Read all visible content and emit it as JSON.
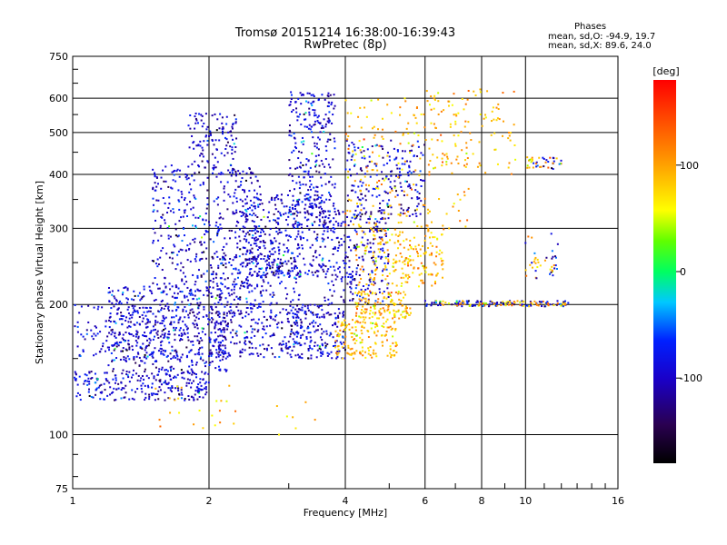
{
  "chart_data": {
    "type": "scatter",
    "title": "Tromsø 20151214 16:38:00-16:39:43",
    "subtitle": "RwPretec (8p)",
    "xlabel": "Frequency [MHz]",
    "ylabel": "Stationary phase Virtual Height [km]",
    "x_scale": "log",
    "y_scale": "log",
    "xlim": [
      1,
      16
    ],
    "ylim": [
      75,
      750
    ],
    "x_ticks": [
      1,
      2,
      4,
      6,
      8,
      10,
      16
    ],
    "y_ticks": [
      75,
      100,
      200,
      300,
      400,
      500,
      600,
      750
    ],
    "colorbar": {
      "label": "[deg]",
      "range": [
        -180,
        180
      ],
      "ticks": [
        100,
        0,
        -100
      ]
    },
    "stats": {
      "header": "Phases",
      "o_mode": "mean, sd,O: -94.9, 19.7",
      "x_mode": "mean, sd,X:  89.6, 24.0"
    },
    "series": [
      {
        "description": "O-mode echoes (blue/violet, phase near -95 deg)",
        "phase_mean": -94.9,
        "phase_sd": 19.7,
        "clusters": [
          {
            "x": [
              1.0,
              2.0
            ],
            "y": [
              120,
              140
            ],
            "n": 260
          },
          {
            "x": [
              1.2,
              2.2
            ],
            "y": [
              140,
              220
            ],
            "n": 520
          },
          {
            "x": [
              1.5,
              2.6
            ],
            "y": [
              220,
              420
            ],
            "n": 420
          },
          {
            "x": [
              1.8,
              2.3
            ],
            "y": [
              400,
              560
            ],
            "n": 120
          },
          {
            "x": [
              2.0,
              3.2
            ],
            "y": [
              150,
              260
            ],
            "n": 420
          },
          {
            "x": [
              2.4,
              3.6
            ],
            "y": [
              230,
              360
            ],
            "n": 340
          },
          {
            "x": [
              3.0,
              3.8
            ],
            "y": [
              300,
              620
            ],
            "n": 300
          },
          {
            "x": [
              3.0,
              4.0
            ],
            "y": [
              150,
              200
            ],
            "n": 200
          },
          {
            "x": [
              3.6,
              5.0
            ],
            "y": [
              200,
              330
            ],
            "n": 260
          },
          {
            "x": [
              4.0,
              6.0
            ],
            "y": [
              320,
              480
            ],
            "n": 200
          },
          {
            "x": [
              1.0,
              1.9
            ],
            "y": [
              150,
              200
            ],
            "n": 160
          }
        ]
      },
      {
        "description": "X-mode echoes (yellow/orange, phase near +90 deg)",
        "phase_mean": 89.6,
        "phase_sd": 24.0,
        "clusters": [
          {
            "x": [
              3.8,
              5.2
            ],
            "y": [
              150,
              185
            ],
            "n": 160
          },
          {
            "x": [
              4.2,
              5.6
            ],
            "y": [
              185,
              215
            ],
            "n": 140
          },
          {
            "x": [
              4.2,
              6.6
            ],
            "y": [
              220,
              300
            ],
            "n": 220
          },
          {
            "x": [
              4.0,
              7.5
            ],
            "y": [
              300,
              600
            ],
            "n": 200
          },
          {
            "x": [
              6.0,
              9.5
            ],
            "y": [
              400,
              650
            ],
            "n": 90
          },
          {
            "x": [
              1.5,
              3.5
            ],
            "y": [
              100,
              130
            ],
            "n": 30
          }
        ]
      },
      {
        "description": "200 km band and high-frequency echoes (mixed phase)",
        "clusters": [
          {
            "x": [
              6.0,
              12.5
            ],
            "y": [
              198,
              204
            ],
            "n": 180
          },
          {
            "x": [
              10.0,
              12.0
            ],
            "y": [
              230,
              300
            ],
            "n": 40
          },
          {
            "x": [
              10.0,
              12.0
            ],
            "y": [
              410,
              440
            ],
            "n": 40
          }
        ]
      }
    ]
  }
}
